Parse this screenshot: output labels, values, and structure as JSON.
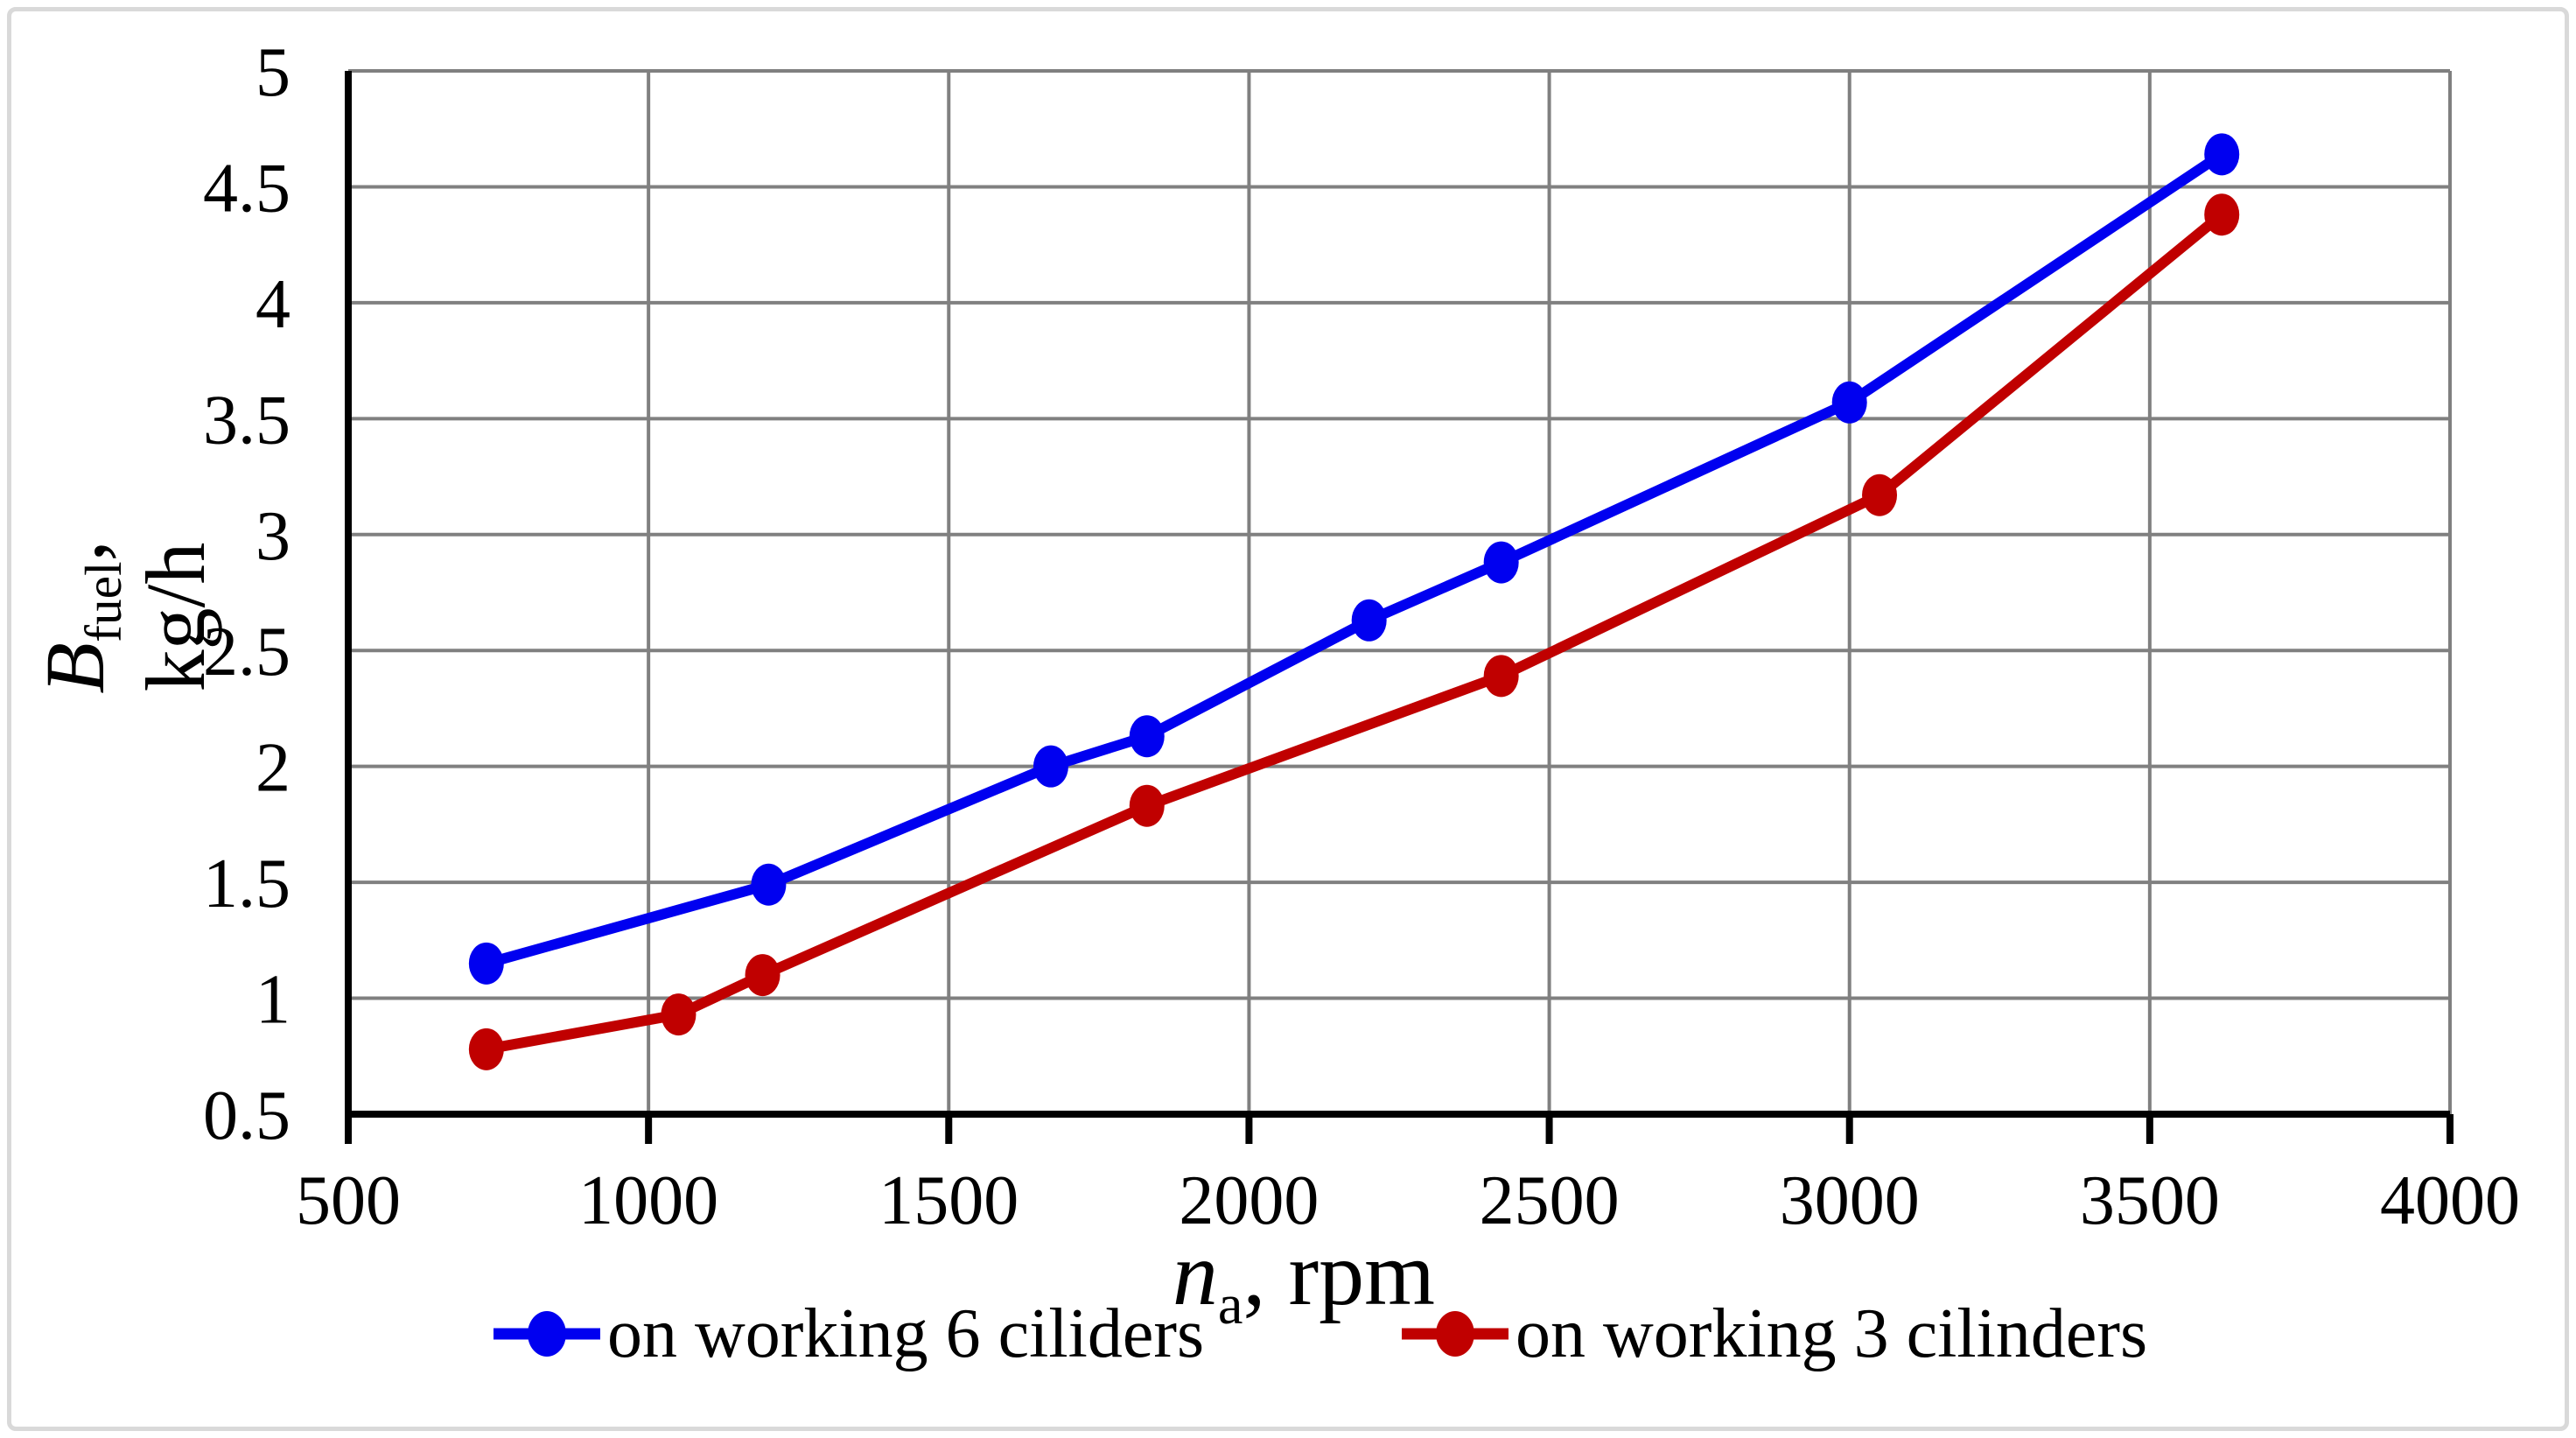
{
  "colors": {
    "series_6cyl": "#0000F0",
    "series_3cyl": "#C00000",
    "gridline": "#808080",
    "axis": "#000000",
    "frame_border": "#D9D9D9",
    "background": "#FFFFFF"
  },
  "chart_data": {
    "type": "line",
    "title": "",
    "xlabel_parts": {
      "variable": "n",
      "subscript": "a",
      "rest": ", rpm"
    },
    "ylabel_parts": {
      "variable": "B",
      "subscript": "fuel",
      "rest": ",",
      "line2": "kg/h"
    },
    "xlim": [
      500,
      4000
    ],
    "ylim": [
      0.5,
      5
    ],
    "x_ticks": [
      500,
      1000,
      1500,
      2000,
      2500,
      3000,
      3500,
      4000
    ],
    "y_ticks": [
      0.5,
      1,
      1.5,
      2,
      2.5,
      3,
      3.5,
      4,
      4.5,
      5
    ],
    "grid": true,
    "legend_position": "bottom",
    "series": [
      {
        "name": "on working 6 ciliders",
        "color": "#0000F0",
        "marker": "circle",
        "points": [
          [
            730,
            1.15
          ],
          [
            1200,
            1.49
          ],
          [
            1670,
            2.0
          ],
          [
            1830,
            2.13
          ],
          [
            2200,
            2.63
          ],
          [
            2420,
            2.88
          ],
          [
            3000,
            3.57
          ],
          [
            3620,
            4.64
          ]
        ]
      },
      {
        "name": "on working 3 cilinders",
        "color": "#C00000",
        "marker": "circle",
        "points": [
          [
            730,
            0.78
          ],
          [
            1050,
            0.93
          ],
          [
            1190,
            1.1
          ],
          [
            1830,
            1.83
          ],
          [
            2420,
            2.39
          ],
          [
            3050,
            3.17
          ],
          [
            3620,
            4.38
          ]
        ]
      }
    ]
  }
}
